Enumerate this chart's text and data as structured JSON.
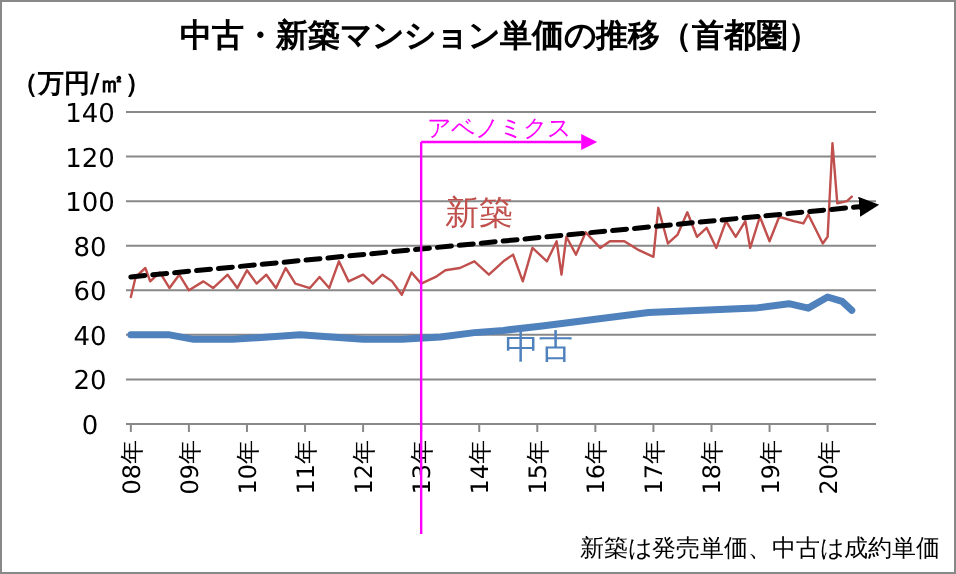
{
  "chart_data": {
    "type": "line",
    "title": "中古・新築マンション単価の推移（首都圏）",
    "ylabel": "（万円/㎡）",
    "xlim": [
      "2007-12",
      "2020-11"
    ],
    "ylim": [
      0,
      140
    ],
    "yticks": [
      0,
      20,
      40,
      60,
      80,
      100,
      120,
      140
    ],
    "xticks": [
      {
        "value": "2008-01",
        "label": "08年"
      },
      {
        "value": "2009-01",
        "label": "09年"
      },
      {
        "value": "2010-01",
        "label": "10年"
      },
      {
        "value": "2011-01",
        "label": "11年"
      },
      {
        "value": "2012-01",
        "label": "12年"
      },
      {
        "value": "2013-01",
        "label": "13年"
      },
      {
        "value": "2014-01",
        "label": "14年"
      },
      {
        "value": "2015-01",
        "label": "15年"
      },
      {
        "value": "2016-01",
        "label": "16年"
      },
      {
        "value": "2017-01",
        "label": "17年"
      },
      {
        "value": "2018-01",
        "label": "18年"
      },
      {
        "value": "2019-01",
        "label": "19年"
      },
      {
        "value": "2020-01",
        "label": "20年"
      }
    ],
    "grid": "y",
    "legend": false,
    "marker": "none",
    "series": [
      {
        "name": "新築",
        "color": "#c0504d",
        "x": [
          "2008-01",
          "2008-02",
          "2008-04",
          "2008-05",
          "2008-07",
          "2008-09",
          "2008-11",
          "2009-01",
          "2009-04",
          "2009-06",
          "2009-09",
          "2009-11",
          "2010-01",
          "2010-03",
          "2010-05",
          "2010-07",
          "2010-09",
          "2010-11",
          "2011-02",
          "2011-04",
          "2011-06",
          "2011-08",
          "2011-10",
          "2012-01",
          "2012-03",
          "2012-05",
          "2012-07",
          "2012-09",
          "2012-11",
          "2013-01",
          "2013-04",
          "2013-06",
          "2013-09",
          "2013-12",
          "2014-03",
          "2014-06",
          "2014-08",
          "2014-10",
          "2014-12",
          "2015-03",
          "2015-05",
          "2015-06",
          "2015-07",
          "2015-09",
          "2015-11",
          "2016-02",
          "2016-04",
          "2016-07",
          "2016-10",
          "2017-01",
          "2017-02",
          "2017-04",
          "2017-06",
          "2017-08",
          "2017-10",
          "2017-12",
          "2018-02",
          "2018-04",
          "2018-06",
          "2018-08",
          "2018-09",
          "2018-11",
          "2019-01",
          "2019-03",
          "2019-06",
          "2019-08",
          "2019-09",
          "2019-12",
          "2020-01",
          "2020-02",
          "2020-03",
          "2020-05",
          "2020-06"
        ],
        "values": [
          57,
          66,
          70,
          64,
          68,
          61,
          67,
          60,
          64,
          61,
          67,
          61,
          69,
          63,
          67,
          61,
          70,
          63,
          61,
          66,
          61,
          73,
          64,
          67,
          63,
          67,
          64,
          58,
          68,
          63,
          66,
          69,
          70,
          73,
          67,
          73,
          76,
          64,
          79,
          73,
          82,
          67,
          84,
          76,
          86,
          79,
          82,
          82,
          78,
          75,
          97,
          81,
          85,
          95,
          84,
          88,
          79,
          91,
          84,
          91,
          79,
          93,
          82,
          93,
          91,
          90,
          94,
          81,
          84,
          126,
          99,
          100,
          102
        ]
      },
      {
        "name": "中古",
        "color": "#4f81bd",
        "x": [
          "2008-01",
          "2008-09",
          "2009-02",
          "2009-10",
          "2010-12",
          "2012-01",
          "2012-09",
          "2013-05",
          "2013-12",
          "2014-06",
          "2015-02",
          "2016-01",
          "2016-12",
          "2017-11",
          "2018-10",
          "2019-05",
          "2019-09",
          "2020-01",
          "2020-04",
          "2020-06"
        ],
        "values": [
          40,
          40,
          38,
          38,
          40,
          38,
          38,
          39,
          41,
          42,
          44,
          47,
          50,
          51,
          52,
          54,
          52,
          57,
          55,
          51
        ]
      },
      {
        "type": "line",
        "color": "#000000",
        "line_style": "dashed",
        "x": [
          "2008-01",
          "2020-10"
        ],
        "values": [
          66,
          98
        ]
      }
    ],
    "ref_lines": [
      {
        "axis": "x",
        "value": "2013-01",
        "label": "アベノミクス",
        "color": "#ff00ff"
      }
    ],
    "annotations": [
      "新築は発売単価、中古は成約単価"
    ]
  }
}
